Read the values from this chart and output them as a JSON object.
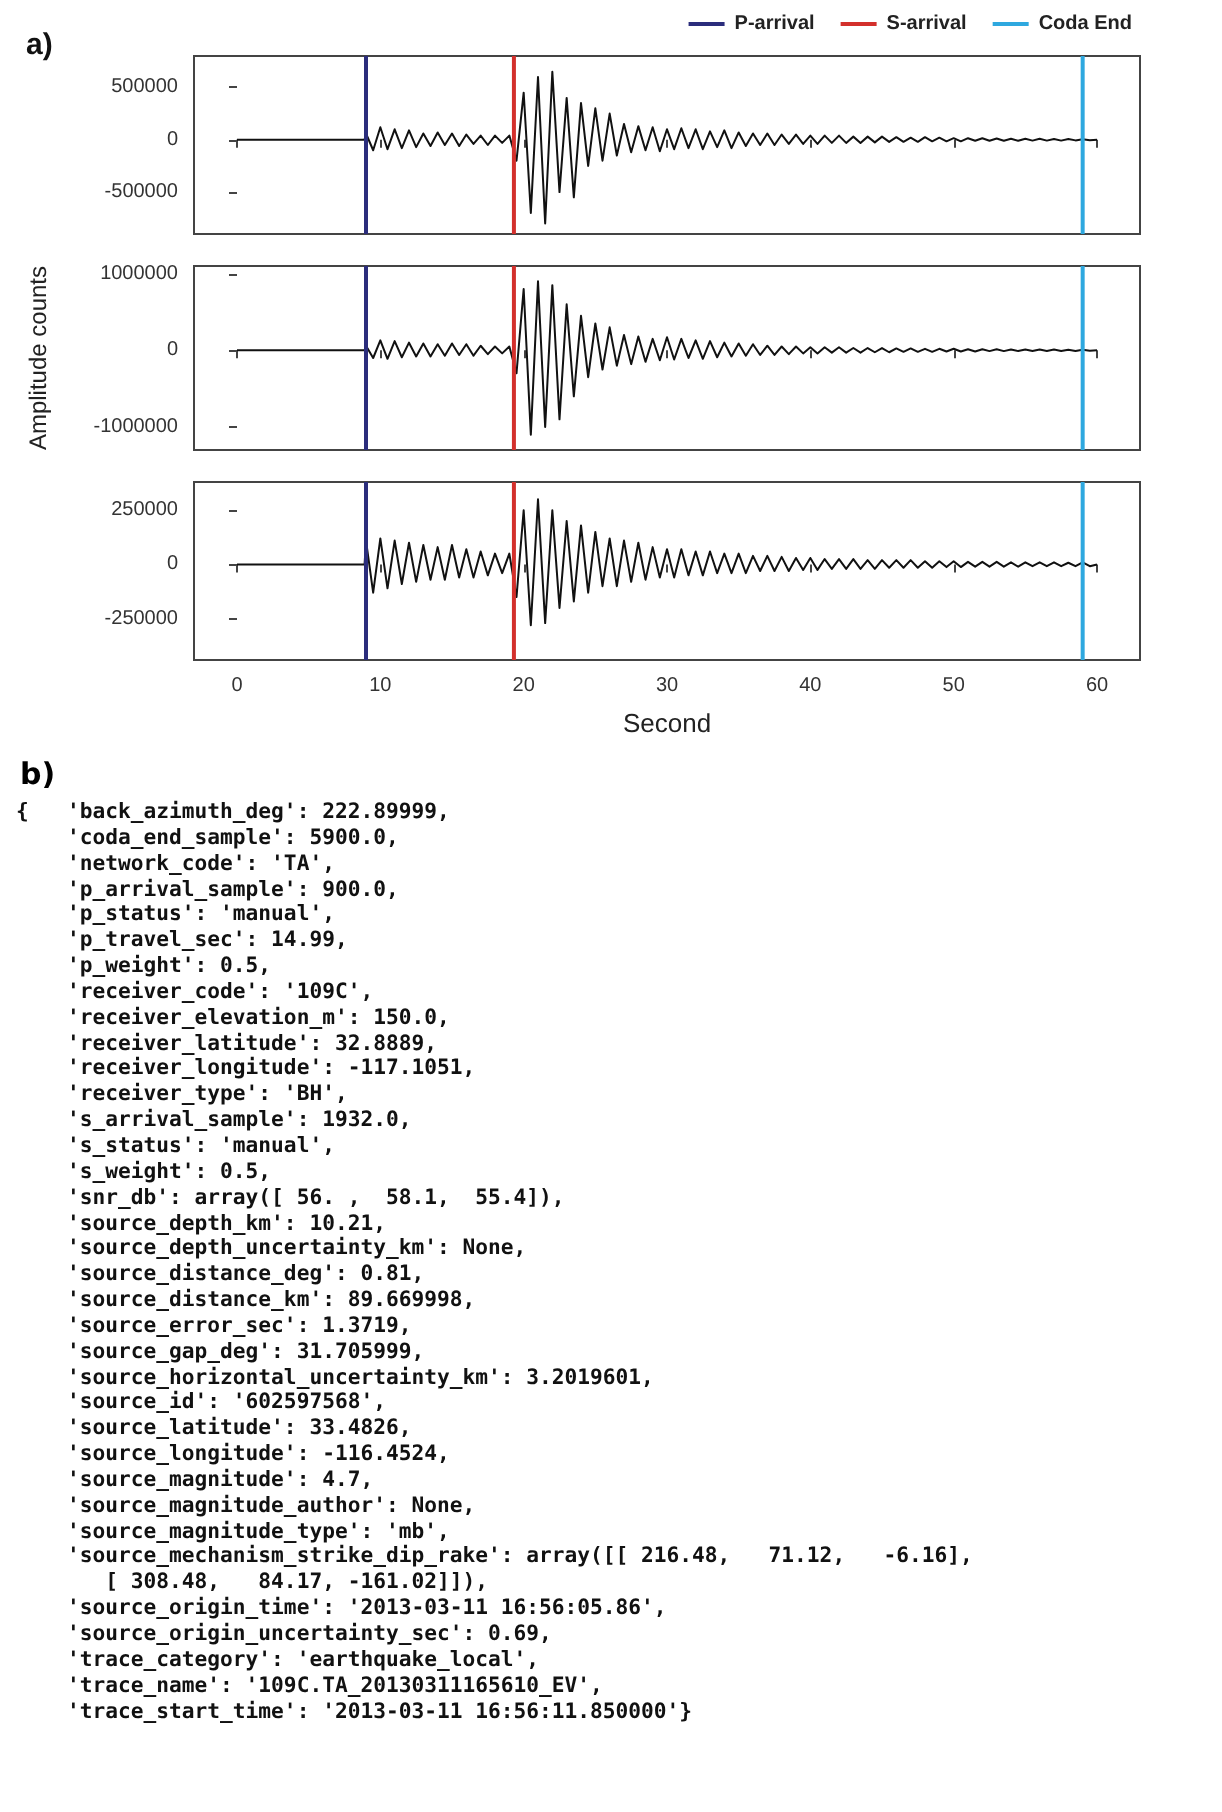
{
  "chart_data": [
    {
      "type": "line",
      "title": "a)",
      "x": [
        0,
        8.9,
        9,
        9.5,
        10,
        10.5,
        11,
        11.5,
        12,
        12.5,
        13,
        13.5,
        14,
        14.5,
        15,
        15.5,
        16,
        16.5,
        17,
        17.5,
        18,
        18.5,
        19,
        19.5,
        20,
        20.5,
        21,
        21.5,
        22,
        22.5,
        23,
        23.5,
        24,
        24.5,
        25,
        25.5,
        26,
        26.5,
        27,
        27.5,
        28,
        28.5,
        29,
        29.5,
        30,
        30.5,
        31,
        31.5,
        32,
        32.5,
        33,
        33.5,
        34,
        34.5,
        35,
        35.5,
        36,
        36.5,
        37,
        37.5,
        38,
        38.5,
        39,
        39.5,
        40,
        40.5,
        41,
        41.5,
        42,
        42.5,
        43,
        43.5,
        44,
        44.5,
        45,
        45.5,
        46,
        46.5,
        47,
        47.5,
        48,
        48.5,
        49,
        49.5,
        50,
        50.5,
        51,
        51.5,
        52,
        52.5,
        53,
        53.5,
        54,
        54.5,
        55,
        55.5,
        56,
        56.5,
        57,
        57.5,
        58,
        58.5,
        59,
        59.5,
        60
      ],
      "series": [
        {
          "color": "#111111",
          "values": [
            0,
            0,
            60000,
            -100000,
            120000,
            -90000,
            100000,
            -80000,
            90000,
            -70000,
            60000,
            -60000,
            70000,
            -50000,
            60000,
            -60000,
            50000,
            -40000,
            40000,
            -50000,
            40000,
            -30000,
            40000,
            -200000,
            450000,
            -700000,
            600000,
            -800000,
            650000,
            -500000,
            400000,
            -550000,
            350000,
            -250000,
            300000,
            -200000,
            250000,
            -150000,
            150000,
            -120000,
            130000,
            -100000,
            120000,
            -110000,
            100000,
            -90000,
            110000,
            -80000,
            100000,
            -90000,
            80000,
            -70000,
            90000,
            -80000,
            70000,
            -60000,
            60000,
            -50000,
            60000,
            -50000,
            50000,
            -40000,
            50000,
            -40000,
            40000,
            -40000,
            40000,
            -30000,
            40000,
            -30000,
            30000,
            -30000,
            30000,
            -25000,
            30000,
            -20000,
            25000,
            -20000,
            20000,
            -20000,
            25000,
            -15000,
            20000,
            -15000,
            15000,
            -15000,
            15000,
            -10000,
            15000,
            -10000,
            12000,
            -10000,
            10000,
            -10000,
            10000,
            -8000,
            10000,
            -8000,
            8000,
            -8000,
            8000,
            -6000,
            5000,
            -5000,
            0
          ]
        }
      ],
      "xlim": [
        -3,
        63
      ],
      "xticks": [
        0,
        10,
        20,
        30,
        40,
        50,
        60
      ],
      "ylim": [
        -900000,
        800000
      ],
      "yticks": [
        -500000,
        0,
        500000
      ],
      "tick_labels": "y",
      "legend": "top right",
      "ref_lines": [
        {
          "axis": "x",
          "value": 9,
          "label": "P-arrival",
          "color": "#2b2d7c"
        },
        {
          "axis": "x",
          "value": 19.32,
          "label": "S-arrival",
          "color": "#d3302c"
        },
        {
          "axis": "x",
          "value": 59,
          "label": "Coda End",
          "color": "#2ea8df"
        }
      ]
    },
    {
      "type": "line",
      "ylabel": "Amplitude counts",
      "x": [
        0,
        8.9,
        9,
        9.5,
        10,
        10.5,
        11,
        11.5,
        12,
        12.5,
        13,
        13.5,
        14,
        14.5,
        15,
        15.5,
        16,
        16.5,
        17,
        17.5,
        18,
        18.5,
        19,
        19.5,
        20,
        20.5,
        21,
        21.5,
        22,
        22.5,
        23,
        23.5,
        24,
        24.5,
        25,
        25.5,
        26,
        26.5,
        27,
        27.5,
        28,
        28.5,
        29,
        29.5,
        30,
        30.5,
        31,
        31.5,
        32,
        32.5,
        33,
        33.5,
        34,
        34.5,
        35,
        35.5,
        36,
        36.5,
        37,
        37.5,
        38,
        38.5,
        39,
        39.5,
        40,
        40.5,
        41,
        41.5,
        42,
        42.5,
        43,
        43.5,
        44,
        44.5,
        45,
        45.5,
        46,
        46.5,
        47,
        47.5,
        48,
        48.5,
        49,
        49.5,
        50,
        50.5,
        51,
        51.5,
        52,
        52.5,
        53,
        53.5,
        54,
        54.5,
        55,
        55.5,
        56,
        56.5,
        57,
        57.5,
        58,
        58.5,
        59,
        59.5,
        60
      ],
      "series": [
        {
          "color": "#111111",
          "values": [
            0,
            0,
            60000,
            -100000,
            130000,
            -110000,
            120000,
            -90000,
            100000,
            -80000,
            90000,
            -80000,
            80000,
            -70000,
            90000,
            -60000,
            80000,
            -70000,
            60000,
            -50000,
            50000,
            -40000,
            50000,
            -300000,
            800000,
            -1100000,
            900000,
            -1000000,
            850000,
            -900000,
            600000,
            -600000,
            450000,
            -350000,
            350000,
            -250000,
            300000,
            -200000,
            200000,
            -180000,
            180000,
            -150000,
            150000,
            -130000,
            170000,
            -120000,
            150000,
            -100000,
            130000,
            -110000,
            120000,
            -90000,
            100000,
            -80000,
            90000,
            -70000,
            80000,
            -60000,
            60000,
            -60000,
            50000,
            -50000,
            50000,
            -40000,
            40000,
            -40000,
            40000,
            -30000,
            40000,
            -30000,
            30000,
            -30000,
            30000,
            -25000,
            30000,
            -25000,
            25000,
            -20000,
            25000,
            -20000,
            20000,
            -20000,
            20000,
            -15000,
            20000,
            -15000,
            15000,
            -15000,
            15000,
            -10000,
            15000,
            -10000,
            12000,
            -10000,
            10000,
            -10000,
            10000,
            -8000,
            10000,
            -8000,
            8000,
            -8000,
            8000,
            -6000,
            0
          ]
        }
      ],
      "xlim": [
        -3,
        63
      ],
      "xticks": [
        0,
        10,
        20,
        30,
        40,
        50,
        60
      ],
      "ylim": [
        -1300000,
        1100000
      ],
      "yticks": [
        -1000000,
        0,
        1000000
      ],
      "tick_labels": "y",
      "ref_lines": [
        {
          "axis": "x",
          "value": 9,
          "color": "#2b2d7c"
        },
        {
          "axis": "x",
          "value": 19.32,
          "color": "#d3302c"
        },
        {
          "axis": "x",
          "value": 59,
          "color": "#2ea8df"
        }
      ]
    },
    {
      "type": "line",
      "xlabel": "Second",
      "x": [
        0,
        8.9,
        9,
        9.5,
        10,
        10.5,
        11,
        11.5,
        12,
        12.5,
        13,
        13.5,
        14,
        14.5,
        15,
        15.5,
        16,
        16.5,
        17,
        17.5,
        18,
        18.5,
        19,
        19.5,
        20,
        20.5,
        21,
        21.5,
        22,
        22.5,
        23,
        23.5,
        24,
        24.5,
        25,
        25.5,
        26,
        26.5,
        27,
        27.5,
        28,
        28.5,
        29,
        29.5,
        30,
        30.5,
        31,
        31.5,
        32,
        32.5,
        33,
        33.5,
        34,
        34.5,
        35,
        35.5,
        36,
        36.5,
        37,
        37.5,
        38,
        38.5,
        39,
        39.5,
        40,
        40.5,
        41,
        41.5,
        42,
        42.5,
        43,
        43.5,
        44,
        44.5,
        45,
        45.5,
        46,
        46.5,
        47,
        47.5,
        48,
        48.5,
        49,
        49.5,
        50,
        50.5,
        51,
        51.5,
        52,
        52.5,
        53,
        53.5,
        54,
        54.5,
        55,
        55.5,
        56,
        56.5,
        57,
        57.5,
        58,
        58.5,
        59,
        59.5,
        60
      ],
      "series": [
        {
          "color": "#111111",
          "values": [
            0,
            0,
            110000,
            -130000,
            120000,
            -110000,
            110000,
            -90000,
            100000,
            -80000,
            90000,
            -70000,
            80000,
            -70000,
            90000,
            -60000,
            70000,
            -60000,
            60000,
            -50000,
            50000,
            -40000,
            50000,
            -150000,
            250000,
            -280000,
            300000,
            -270000,
            250000,
            -200000,
            200000,
            -170000,
            180000,
            -130000,
            150000,
            -100000,
            120000,
            -100000,
            110000,
            -80000,
            100000,
            -70000,
            80000,
            -60000,
            70000,
            -60000,
            70000,
            -50000,
            60000,
            -50000,
            60000,
            -40000,
            50000,
            -40000,
            50000,
            -40000,
            40000,
            -30000,
            40000,
            -30000,
            35000,
            -30000,
            30000,
            -25000,
            30000,
            -25000,
            25000,
            -20000,
            25000,
            -20000,
            25000,
            -20000,
            20000,
            -20000,
            20000,
            -15000,
            20000,
            -15000,
            20000,
            -15000,
            15000,
            -15000,
            15000,
            -12000,
            15000,
            -12000,
            12000,
            -10000,
            12000,
            -10000,
            12000,
            -10000,
            10000,
            -10000,
            10000,
            -8000,
            10000,
            -8000,
            10000,
            -8000,
            8000,
            -8000,
            10000,
            -8000,
            0
          ]
        }
      ],
      "xlim": [
        -3,
        63
      ],
      "xticks": [
        0,
        10,
        20,
        30,
        40,
        50,
        60
      ],
      "ylim": [
        -440000,
        380000
      ],
      "yticks": [
        -250000,
        0,
        250000
      ],
      "ref_lines": [
        {
          "axis": "x",
          "value": 9,
          "color": "#2b2d7c"
        },
        {
          "axis": "x",
          "value": 19.32,
          "color": "#d3302c"
        },
        {
          "axis": "x",
          "value": 59,
          "color": "#2ea8df"
        }
      ]
    },
    {
      "type": "other",
      "title": "b)",
      "annotations": [
        "{   'back_azimuth_deg': 222.89999,",
        "    'coda_end_sample': 5900.0,",
        "    'network_code': 'TA',",
        "    'p_arrival_sample': 900.0,",
        "    'p_status': 'manual',",
        "    'p_travel_sec': 14.99,",
        "    'p_weight': 0.5,",
        "    'receiver_code': '109C',",
        "    'receiver_elevation_m': 150.0,",
        "    'receiver_latitude': 32.8889,",
        "    'receiver_longitude': -117.1051,",
        "    'receiver_type': 'BH',",
        "    's_arrival_sample': 1932.0,",
        "    's_status': 'manual',",
        "    's_weight': 0.5,",
        "    'snr_db': array([ 56. ,  58.1,  55.4]),",
        "    'source_depth_km': 10.21,",
        "    'source_depth_uncertainty_km': None,",
        "    'source_distance_deg': 0.81,",
        "    'source_distance_km': 89.669998,",
        "    'source_error_sec': 1.3719,",
        "    'source_gap_deg': 31.705999,",
        "    'source_horizontal_uncertainty_km': 3.2019601,",
        "    'source_id': '602597568',",
        "    'source_latitude': 33.4826,",
        "    'source_longitude': -116.4524,",
        "    'source_magnitude': 4.7,",
        "    'source_magnitude_author': None,",
        "    'source_magnitude_type': 'mb',",
        "    'source_mechanism_strike_dip_rake': array([[ 216.48,   71.12,   -6.16],",
        "       [ 308.48,   84.17, -161.02]]),",
        "    'source_origin_time': '2013-03-11 16:56:05.86',",
        "    'source_origin_uncertainty_sec': 0.69,",
        "    'trace_category': 'earthquake_local',",
        "    'trace_name': '109C.TA_20130311165610_EV',",
        "    'trace_start_time': '2013-03-11 16:56:11.850000'}"
      ]
    }
  ]
}
